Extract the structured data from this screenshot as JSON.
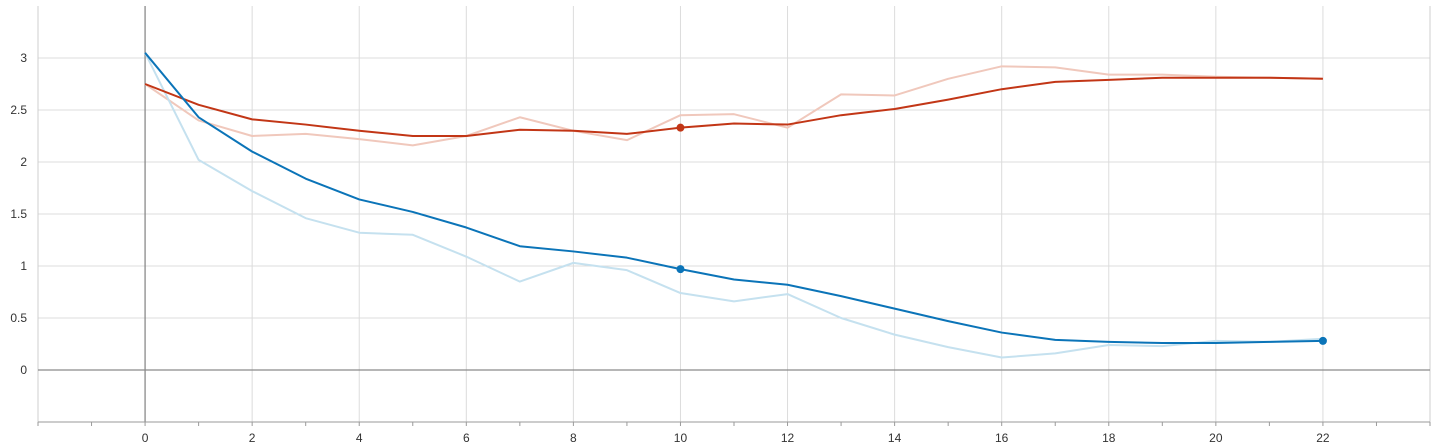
{
  "chart_data": {
    "type": "line",
    "title": "",
    "xlabel": "",
    "ylabel": "",
    "xlim": [
      -2,
      24
    ],
    "ylim": [
      -0.5,
      3.5
    ],
    "x_ticks": [
      0,
      2,
      4,
      6,
      8,
      10,
      12,
      14,
      16,
      18,
      20,
      22
    ],
    "y_ticks": [
      0,
      0.5,
      1,
      1.5,
      2,
      2.5,
      3
    ],
    "x_tick_labels": [
      "0",
      "2",
      "4",
      "6",
      "8",
      "10",
      "12",
      "14",
      "16",
      "18",
      "20",
      "22"
    ],
    "y_tick_labels": [
      "0",
      "0.5",
      "1",
      "1.5",
      "2",
      "2.5",
      "3"
    ],
    "grid": true,
    "legend": "none",
    "x": [
      0,
      1,
      2,
      3,
      4,
      5,
      6,
      7,
      8,
      9,
      10,
      11,
      12,
      13,
      14,
      15,
      16,
      17,
      18,
      19,
      20,
      21,
      22
    ],
    "series": [
      {
        "color": "#c23616",
        "raw_color": "#f0c8bc",
        "raw_values": [
          2.75,
          2.4,
          2.25,
          2.27,
          2.22,
          2.16,
          2.25,
          2.43,
          2.3,
          2.21,
          2.45,
          2.46,
          2.33,
          2.65,
          2.64,
          2.8,
          2.92,
          2.91,
          2.84,
          2.84,
          2.82,
          2.81,
          2.8
        ],
        "smoothed_values": [
          2.75,
          2.55,
          2.41,
          2.36,
          2.3,
          2.25,
          2.25,
          2.31,
          2.3,
          2.27,
          2.33,
          2.37,
          2.36,
          2.45,
          2.51,
          2.6,
          2.7,
          2.77,
          2.79,
          2.81,
          2.81,
          2.81,
          2.8
        ],
        "markers": [
          10
        ]
      },
      {
        "color": "#0b74b8",
        "raw_color": "#c5e1ef",
        "raw_values": [
          3.05,
          2.02,
          1.72,
          1.46,
          1.32,
          1.3,
          1.09,
          0.85,
          1.03,
          0.96,
          0.74,
          0.66,
          0.73,
          0.5,
          0.34,
          0.22,
          0.12,
          0.16,
          0.24,
          0.23,
          0.28,
          0.27,
          0.3
        ],
        "smoothed_values": [
          3.05,
          2.43,
          2.1,
          1.84,
          1.64,
          1.52,
          1.37,
          1.19,
          1.14,
          1.08,
          0.97,
          0.87,
          0.82,
          0.71,
          0.59,
          0.47,
          0.36,
          0.29,
          0.27,
          0.26,
          0.26,
          0.27,
          0.28
        ],
        "markers": [
          10,
          22
        ]
      }
    ]
  }
}
